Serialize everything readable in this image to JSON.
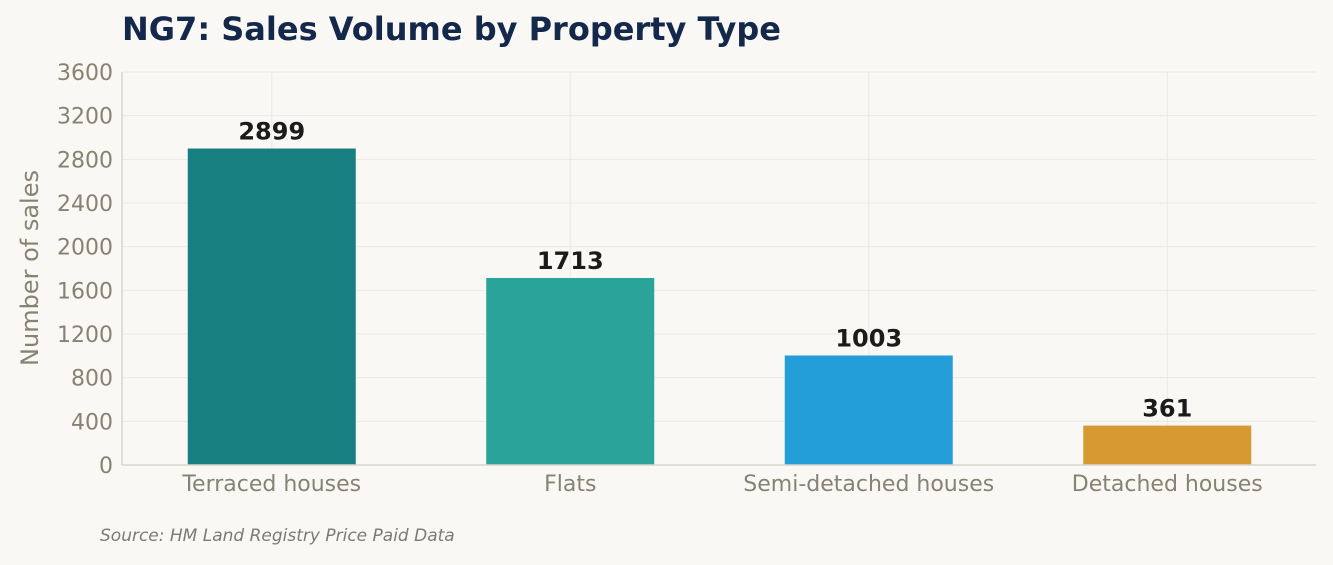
{
  "chart_data": {
    "type": "bar",
    "title": "NG7: Sales Volume by Property Type",
    "xlabel": "",
    "ylabel": "Number of sales",
    "categories": [
      "Terraced houses",
      "Flats",
      "Semi-detached houses",
      "Detached houses"
    ],
    "values": [
      2899,
      1713,
      1003,
      361
    ],
    "data_labels": [
      "2899",
      "1713",
      "1003",
      "361"
    ],
    "bar_colors": [
      "#177f7f",
      "#2aa39b",
      "#239ed9",
      "#d79a33"
    ],
    "ylim": [
      0,
      3600
    ],
    "yticks": [
      0,
      400,
      800,
      1200,
      1600,
      2000,
      2400,
      2800,
      3200,
      3600
    ],
    "grid": true,
    "legend": "none"
  },
  "source": "Source: HM Land Registry Price Paid Data",
  "colors": {
    "background": "#f9f8f4",
    "title": "#14284b",
    "axis_text": "#878272",
    "value_label": "#1b1b1b",
    "grid": "#ece9e3",
    "axis_line": "#d8d5cc"
  }
}
